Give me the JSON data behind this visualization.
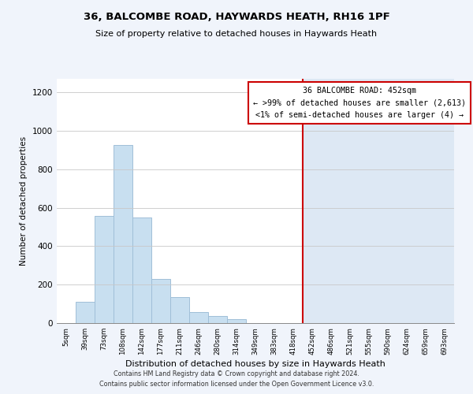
{
  "title": "36, BALCOMBE ROAD, HAYWARDS HEATH, RH16 1PF",
  "subtitle": "Size of property relative to detached houses in Haywards Heath",
  "xlabel": "Distribution of detached houses by size in Haywards Heath",
  "ylabel": "Number of detached properties",
  "bar_labels": [
    "5sqm",
    "39sqm",
    "73sqm",
    "108sqm",
    "142sqm",
    "177sqm",
    "211sqm",
    "246sqm",
    "280sqm",
    "314sqm",
    "349sqm",
    "383sqm",
    "418sqm",
    "452sqm",
    "486sqm",
    "521sqm",
    "555sqm",
    "590sqm",
    "624sqm",
    "659sqm",
    "693sqm"
  ],
  "bar_values": [
    0,
    110,
    557,
    925,
    548,
    230,
    137,
    58,
    37,
    20,
    0,
    0,
    0,
    0,
    0,
    0,
    0,
    0,
    0,
    0,
    0
  ],
  "bar_color": "#c8dff0",
  "bar_edge_color": "#a0bfd8",
  "right_bg_color": "#dde8f4",
  "vline_x_index": 13,
  "vline_color": "#cc0000",
  "annotation_title": "36 BALCOMBE ROAD: 452sqm",
  "annotation_line1": "← >99% of detached houses are smaller (2,613)",
  "annotation_line2": "<1% of semi-detached houses are larger (4) →",
  "annotation_box_color": "#ffffff",
  "annotation_box_edge": "#cc0000",
  "footer_line1": "Contains HM Land Registry data © Crown copyright and database right 2024.",
  "footer_line2": "Contains public sector information licensed under the Open Government Licence v3.0.",
  "ylim": [
    0,
    1270
  ],
  "background_color": "#f0f4fb",
  "plot_bg_left": "#ffffff",
  "grid_color": "#c8c8c8"
}
